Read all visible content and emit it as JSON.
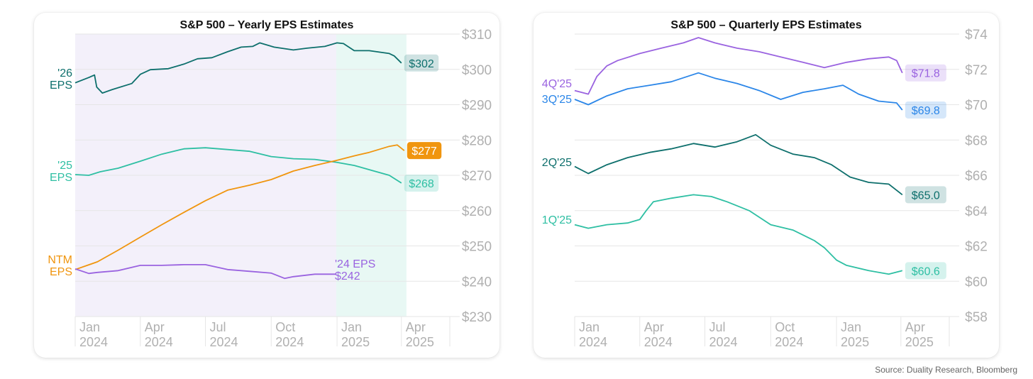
{
  "source": "Source: Duality Research, Bloomberg",
  "colors": {
    "eps26": "#0d6f6c",
    "eps25": "#2ebfa3",
    "ntm": "#f0950e",
    "eps24": "#9a63e0",
    "q4": "#9a63e0",
    "q3": "#2b86e8",
    "q2": "#0d6f6c",
    "q1": "#2ebfa3",
    "grid": "#e6e6e6",
    "tick": "#b0b0b0",
    "shade_green": "#dcf4ee",
    "shade_purple": "#ece8f8"
  },
  "chart_data": [
    {
      "type": "line",
      "title": "S&P 500 – Yearly EPS Estimates",
      "x_ticks": [
        [
          "Jan",
          "2024"
        ],
        [
          "Apr",
          "2024"
        ],
        [
          "Jul",
          "2024"
        ],
        [
          "Oct",
          "2024"
        ],
        [
          "Jan",
          "2025"
        ],
        [
          "Apr",
          "2025"
        ]
      ],
      "x_range": [
        "2024-01-01",
        "2025-04-25"
      ],
      "y_ticks": [
        "$310",
        "$300",
        "$290",
        "$280",
        "$270",
        "$260",
        "$250",
        "$240",
        "$230"
      ],
      "ylim": [
        230,
        310
      ],
      "grid": true,
      "shaded_regions": [
        {
          "from": "2024-01-01",
          "to": "2024-12-31",
          "color": "shade_purple"
        },
        {
          "from": "2024-12-31",
          "to": "2025-04-08",
          "color": "shade_green"
        }
      ],
      "series": [
        {
          "name": "'26 EPS",
          "label_lines": [
            "'26",
            "EPS"
          ],
          "color": "eps26",
          "end_label": "$302",
          "points": [
            [
              "2024-01-01",
              296.2
            ],
            [
              "2024-01-20",
              297.7
            ],
            [
              "2024-01-28",
              298.4
            ],
            [
              "2024-01-31",
              295.0
            ],
            [
              "2024-02-08",
              293.3
            ],
            [
              "2024-02-22",
              294.3
            ],
            [
              "2024-03-20",
              296.0
            ],
            [
              "2024-04-01",
              298.6
            ],
            [
              "2024-04-15",
              299.9
            ],
            [
              "2024-05-10",
              300.2
            ],
            [
              "2024-06-01",
              301.5
            ],
            [
              "2024-06-20",
              303.0
            ],
            [
              "2024-07-10",
              303.3
            ],
            [
              "2024-08-01",
              305.0
            ],
            [
              "2024-08-20",
              306.3
            ],
            [
              "2024-09-05",
              306.5
            ],
            [
              "2024-09-15",
              307.5
            ],
            [
              "2024-10-05",
              306.3
            ],
            [
              "2024-11-01",
              305.5
            ],
            [
              "2024-11-20",
              306.0
            ],
            [
              "2024-12-15",
              306.5
            ],
            [
              "2025-01-01",
              307.5
            ],
            [
              "2025-01-10",
              307.3
            ],
            [
              "2025-01-25",
              305.3
            ],
            [
              "2025-02-15",
              305.3
            ],
            [
              "2025-03-15",
              304.5
            ],
            [
              "2025-03-22",
              303.8
            ],
            [
              "2025-04-01",
              301.8
            ]
          ]
        },
        {
          "name": "'25 EPS",
          "label_lines": [
            "'25",
            "EPS"
          ],
          "color": "eps25",
          "end_label": "$268",
          "points": [
            [
              "2024-01-01",
              270.2
            ],
            [
              "2024-01-20",
              270.0
            ],
            [
              "2024-02-05",
              271.0
            ],
            [
              "2024-03-01",
              272.0
            ],
            [
              "2024-04-01",
              274.0
            ],
            [
              "2024-05-01",
              276.0
            ],
            [
              "2024-06-01",
              277.5
            ],
            [
              "2024-07-01",
              277.8
            ],
            [
              "2024-08-01",
              277.3
            ],
            [
              "2024-09-01",
              276.8
            ],
            [
              "2024-10-01",
              275.3
            ],
            [
              "2024-11-01",
              274.7
            ],
            [
              "2024-12-01",
              274.5
            ],
            [
              "2024-12-31",
              273.7
            ],
            [
              "2025-01-25",
              272.8
            ],
            [
              "2025-02-20",
              271.3
            ],
            [
              "2025-03-15",
              270.0
            ],
            [
              "2025-04-01",
              267.8
            ]
          ]
        },
        {
          "name": "NTM EPS",
          "label_lines": [
            "NTM",
            "EPS"
          ],
          "color": "ntm",
          "end_label": "$277",
          "points": [
            [
              "2024-01-01",
              243.3
            ],
            [
              "2024-02-01",
              245.5
            ],
            [
              "2024-03-01",
              248.8
            ],
            [
              "2024-04-01",
              252.5
            ],
            [
              "2024-05-01",
              256.0
            ],
            [
              "2024-06-01",
              259.5
            ],
            [
              "2024-07-01",
              262.8
            ],
            [
              "2024-08-01",
              265.8
            ],
            [
              "2024-09-01",
              267.2
            ],
            [
              "2024-10-01",
              268.8
            ],
            [
              "2024-11-01",
              271.2
            ],
            [
              "2024-12-01",
              272.8
            ],
            [
              "2024-12-31",
              274.2
            ],
            [
              "2025-01-25",
              275.5
            ],
            [
              "2025-02-15",
              276.5
            ],
            [
              "2025-03-15",
              278.2
            ],
            [
              "2025-03-26",
              278.6
            ],
            [
              "2025-04-05",
              277.0
            ]
          ]
        },
        {
          "name": "'24 EPS",
          "label_lines": [
            "'24 EPS",
            "$242"
          ],
          "color": "eps24",
          "points": [
            [
              "2024-01-01",
              243.5
            ],
            [
              "2024-01-20",
              242.2
            ],
            [
              "2024-02-01",
              242.5
            ],
            [
              "2024-03-01",
              243.0
            ],
            [
              "2024-04-01",
              244.5
            ],
            [
              "2024-05-01",
              244.5
            ],
            [
              "2024-06-01",
              244.7
            ],
            [
              "2024-07-01",
              244.7
            ],
            [
              "2024-08-01",
              243.3
            ],
            [
              "2024-09-01",
              242.8
            ],
            [
              "2024-10-01",
              242.3
            ],
            [
              "2024-10-20",
              240.8
            ],
            [
              "2024-11-01",
              241.3
            ],
            [
              "2024-12-01",
              242.0
            ],
            [
              "2024-12-31",
              242.0
            ]
          ]
        }
      ]
    },
    {
      "type": "line",
      "title": "S&P 500 – Quarterly EPS Estimates",
      "x_ticks": [
        [
          "Jan",
          "2024"
        ],
        [
          "Apr",
          "2024"
        ],
        [
          "Jul",
          "2024"
        ],
        [
          "Oct",
          "2024"
        ],
        [
          "Jan",
          "2025"
        ],
        [
          "Apr",
          "2025"
        ]
      ],
      "x_range": [
        "2024-01-01",
        "2025-04-25"
      ],
      "y_ticks": [
        "$74",
        "$72",
        "$70",
        "$68",
        "$66",
        "$64",
        "$62",
        "$60",
        "$58"
      ],
      "ylim": [
        58,
        74
      ],
      "grid": true,
      "series": [
        {
          "name": "4Q'25",
          "label_lines": [
            "4Q'25"
          ],
          "color": "q4",
          "end_label": "$71.8",
          "points": [
            [
              "2024-01-01",
              70.8
            ],
            [
              "2024-01-20",
              70.6
            ],
            [
              "2024-02-01",
              71.6
            ],
            [
              "2024-02-15",
              72.2
            ],
            [
              "2024-03-01",
              72.5
            ],
            [
              "2024-04-01",
              72.9
            ],
            [
              "2024-05-01",
              73.2
            ],
            [
              "2024-06-01",
              73.5
            ],
            [
              "2024-06-22",
              73.8
            ],
            [
              "2024-07-15",
              73.5
            ],
            [
              "2024-08-15",
              73.2
            ],
            [
              "2024-09-15",
              73.0
            ],
            [
              "2024-10-15",
              72.7
            ],
            [
              "2024-11-15",
              72.4
            ],
            [
              "2024-12-15",
              72.1
            ],
            [
              "2025-01-15",
              72.4
            ],
            [
              "2025-02-15",
              72.6
            ],
            [
              "2025-03-15",
              72.7
            ],
            [
              "2025-03-26",
              72.5
            ],
            [
              "2025-04-03",
              71.8
            ]
          ]
        },
        {
          "name": "3Q'25",
          "label_lines": [
            "3Q'25"
          ],
          "color": "q3",
          "end_label": "$69.8",
          "points": [
            [
              "2024-01-01",
              70.3
            ],
            [
              "2024-01-20",
              70.0
            ],
            [
              "2024-02-15",
              70.5
            ],
            [
              "2024-03-15",
              70.9
            ],
            [
              "2024-04-15",
              71.1
            ],
            [
              "2024-05-15",
              71.3
            ],
            [
              "2024-06-22",
              71.8
            ],
            [
              "2024-07-15",
              71.5
            ],
            [
              "2024-08-15",
              71.2
            ],
            [
              "2024-09-15",
              70.8
            ],
            [
              "2024-10-15",
              70.3
            ],
            [
              "2024-11-15",
              70.7
            ],
            [
              "2024-12-15",
              70.9
            ],
            [
              "2025-01-10",
              71.1
            ],
            [
              "2025-02-01",
              70.6
            ],
            [
              "2025-03-01",
              70.2
            ],
            [
              "2025-03-26",
              70.1
            ],
            [
              "2025-04-03",
              69.7
            ]
          ]
        },
        {
          "name": "2Q'25",
          "label_lines": [
            "2Q'25"
          ],
          "color": "q2",
          "end_label": "$65.0",
          "points": [
            [
              "2024-01-01",
              66.5
            ],
            [
              "2024-01-20",
              66.1
            ],
            [
              "2024-02-15",
              66.6
            ],
            [
              "2024-03-15",
              67.0
            ],
            [
              "2024-04-15",
              67.3
            ],
            [
              "2024-05-15",
              67.5
            ],
            [
              "2024-06-15",
              67.8
            ],
            [
              "2024-07-15",
              67.6
            ],
            [
              "2024-08-15",
              67.9
            ],
            [
              "2024-09-10",
              68.3
            ],
            [
              "2024-10-01",
              67.7
            ],
            [
              "2024-11-01",
              67.2
            ],
            [
              "2024-12-01",
              67.0
            ],
            [
              "2024-12-25",
              66.6
            ],
            [
              "2025-01-20",
              65.9
            ],
            [
              "2025-02-15",
              65.6
            ],
            [
              "2025-03-15",
              65.5
            ],
            [
              "2025-04-03",
              64.9
            ]
          ]
        },
        {
          "name": "1Q'25",
          "label_lines": [
            "1Q'25"
          ],
          "color": "q1",
          "end_label": "$60.6",
          "points": [
            [
              "2024-01-01",
              63.2
            ],
            [
              "2024-01-20",
              63.0
            ],
            [
              "2024-02-15",
              63.2
            ],
            [
              "2024-03-15",
              63.3
            ],
            [
              "2024-04-01",
              63.5
            ],
            [
              "2024-04-10",
              64.0
            ],
            [
              "2024-04-20",
              64.5
            ],
            [
              "2024-05-15",
              64.7
            ],
            [
              "2024-06-15",
              64.9
            ],
            [
              "2024-07-10",
              64.8
            ],
            [
              "2024-08-01",
              64.5
            ],
            [
              "2024-09-01",
              64.0
            ],
            [
              "2024-10-01",
              63.2
            ],
            [
              "2024-11-01",
              62.9
            ],
            [
              "2024-12-01",
              62.3
            ],
            [
              "2024-12-15",
              61.9
            ],
            [
              "2025-01-01",
              61.2
            ],
            [
              "2025-01-15",
              60.9
            ],
            [
              "2025-02-15",
              60.6
            ],
            [
              "2025-03-15",
              60.4
            ],
            [
              "2025-04-03",
              60.6
            ]
          ]
        }
      ]
    }
  ]
}
